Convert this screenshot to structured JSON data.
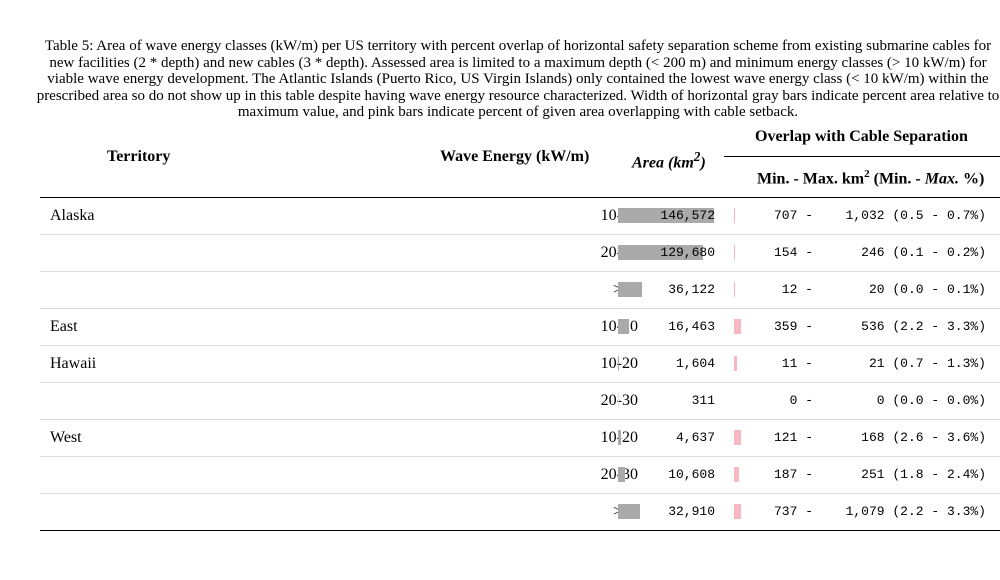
{
  "caption": "Table 5: Area of wave energy classes (kW/m) per US territory with percent overlap of horizontal safety separation scheme from existing submarine cables for new facilities (2 * depth) and new cables (3 * depth). Assessed area is limited to a maximum depth (< 200 m) and minimum energy classes (> 10 kW/m) for viable wave energy development. The Atlantic Islands (Puerto Rico, US Virgin Islands) only contained the lowest wave energy class (< 10 kW/m) within the prescribed area so do not show up in this table despite having wave energy resource characterized. Width of horizontal gray bars indicate percent area relative to maximum value, and pink bars indicate percent of given area overlapping with cable setback.",
  "headers": {
    "territory": "Territory",
    "wave": "Wave Energy (kW/m)",
    "area": "Area (km",
    "area_sup": "2",
    "area_close": ")",
    "overlap": "Overlap with Cable Separation",
    "minmax_a": "Min. - Max. km",
    "minmax_sup": "2",
    "minmax_b": " (Min. - ",
    "minmax_c": "Max.",
    "minmax_d": " %)"
  },
  "rows": [
    {
      "territory": "Alaska",
      "wave": "10-20",
      "area": "146,572",
      "area_pct": 1.0,
      "overlap_pct": 0.007,
      "ov_min": "707 -",
      "ov_max": "1,032 (0.5 - 0.7%)"
    },
    {
      "territory": "",
      "wave": "20-30",
      "area": "129,680",
      "area_pct": 0.885,
      "overlap_pct": 0.002,
      "ov_min": "154 -",
      "ov_max": "246 (0.1 - 0.2%)"
    },
    {
      "territory": "",
      "wave": ">30",
      "area": "36,122",
      "area_pct": 0.246,
      "overlap_pct": 0.001,
      "ov_min": "12 -",
      "ov_max": "20 (0.0 - 0.1%)"
    },
    {
      "territory": "East",
      "wave": "10-20",
      "area": "16,463",
      "area_pct": 0.112,
      "overlap_pct": 0.033,
      "ov_min": "359 -",
      "ov_max": "536 (2.2 - 3.3%)"
    },
    {
      "territory": "Hawaii",
      "wave": "10-20",
      "area": "1,604",
      "area_pct": 0.011,
      "overlap_pct": 0.013,
      "ov_min": "11 -",
      "ov_max": "21 (0.7 - 1.3%)"
    },
    {
      "territory": "",
      "wave": "20-30",
      "area": "311",
      "area_pct": 0.002,
      "overlap_pct": 0.0,
      "ov_min": "0 -",
      "ov_max": "0 (0.0 - 0.0%)"
    },
    {
      "territory": "West",
      "wave": "10-20",
      "area": "4,637",
      "area_pct": 0.032,
      "overlap_pct": 0.036,
      "ov_min": "121 -",
      "ov_max": "168 (2.6 - 3.6%)"
    },
    {
      "territory": "",
      "wave": "20-30",
      "area": "10,608",
      "area_pct": 0.072,
      "overlap_pct": 0.024,
      "ov_min": "187 -",
      "ov_max": "251 (1.8 - 2.4%)"
    },
    {
      "territory": "",
      "wave": ">30",
      "area": "32,910",
      "area_pct": 0.225,
      "overlap_pct": 0.033,
      "ov_min": "737 -",
      "ov_max": "1,079 (2.2 - 3.3%)"
    }
  ],
  "colors": {
    "gray_bar": "#aaaaaa",
    "pink_bar": "#f7b8c4"
  }
}
